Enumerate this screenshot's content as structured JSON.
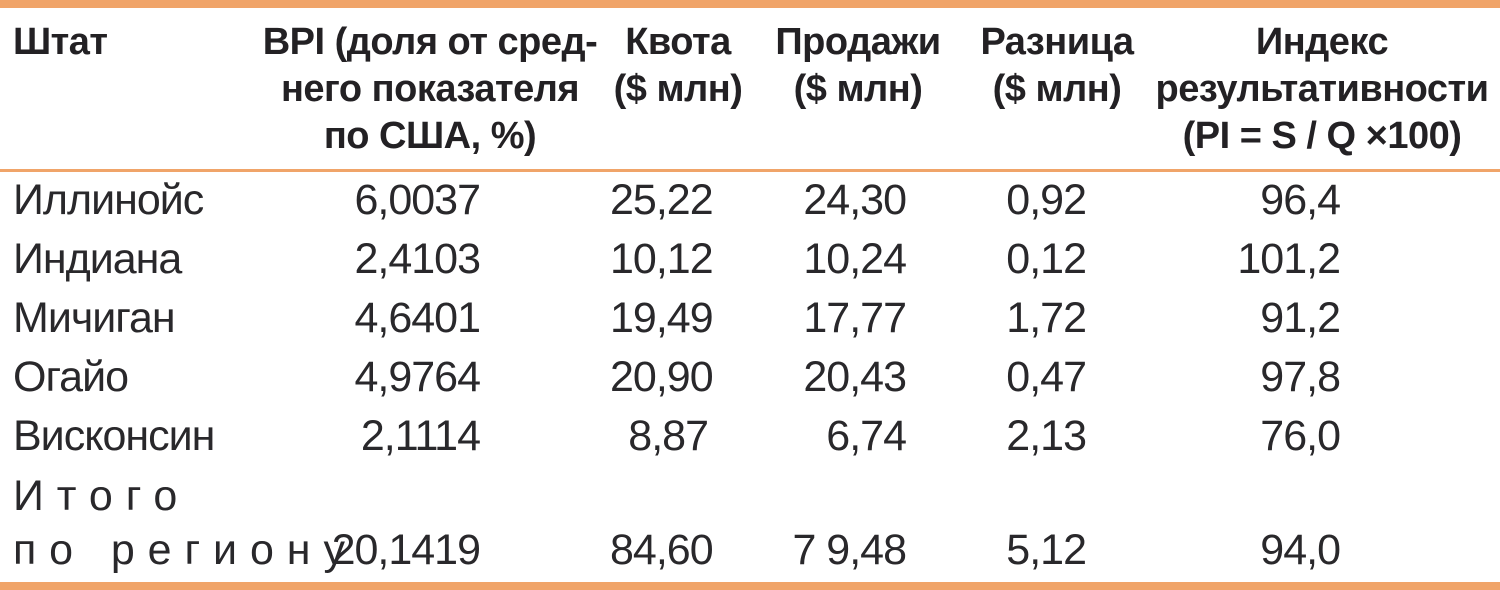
{
  "table": {
    "columns": [
      {
        "id": "state",
        "lines": [
          "Штат"
        ]
      },
      {
        "id": "bpi",
        "lines": [
          "BPI (доля от сред-",
          "него показателя",
          "по США, %)"
        ]
      },
      {
        "id": "quota",
        "lines": [
          "Квота",
          "($ млн)"
        ]
      },
      {
        "id": "sales",
        "lines": [
          "Продажи",
          "($ млн)"
        ]
      },
      {
        "id": "difference",
        "lines": [
          "Разница",
          "($ млн)"
        ]
      },
      {
        "id": "performance_index",
        "lines": [
          "Индекс",
          "результативности",
          "(PI = S / Q ×100)"
        ]
      }
    ],
    "rows": [
      {
        "state": "Иллинойс",
        "bpi": "6,0037",
        "quota": "25,22",
        "sales": "24,30",
        "difference": "0,92",
        "pi": "96,4"
      },
      {
        "state": "Индиана",
        "bpi": "2,4103",
        "quota": "10,12",
        "sales": "10,24",
        "difference": "0,12",
        "pi": "101,2"
      },
      {
        "state": "Мичиган",
        "bpi": "4,6401",
        "quota": "19,49",
        "sales": "17,77",
        "difference": "1,72",
        "pi": "91,2"
      },
      {
        "state": "Огайо",
        "bpi": "4,9764",
        "quota": "20,90",
        "sales": "20,43",
        "difference": "0,47",
        "pi": "97,8"
      },
      {
        "state": "Висконсин",
        "bpi": "2,1114",
        "quota": "8,87",
        "sales": "6,74",
        "difference": "2,13",
        "pi": "76,0"
      }
    ],
    "total": {
      "label_line1": "Итого",
      "label_line2": "по региону",
      "bpi": "20,1419",
      "quota": "84,60",
      "sales": "7 9,48",
      "difference": "5,12",
      "pi": "94,0"
    }
  },
  "colors": {
    "accent_orange": "#F0A469",
    "text": "#29282B"
  }
}
